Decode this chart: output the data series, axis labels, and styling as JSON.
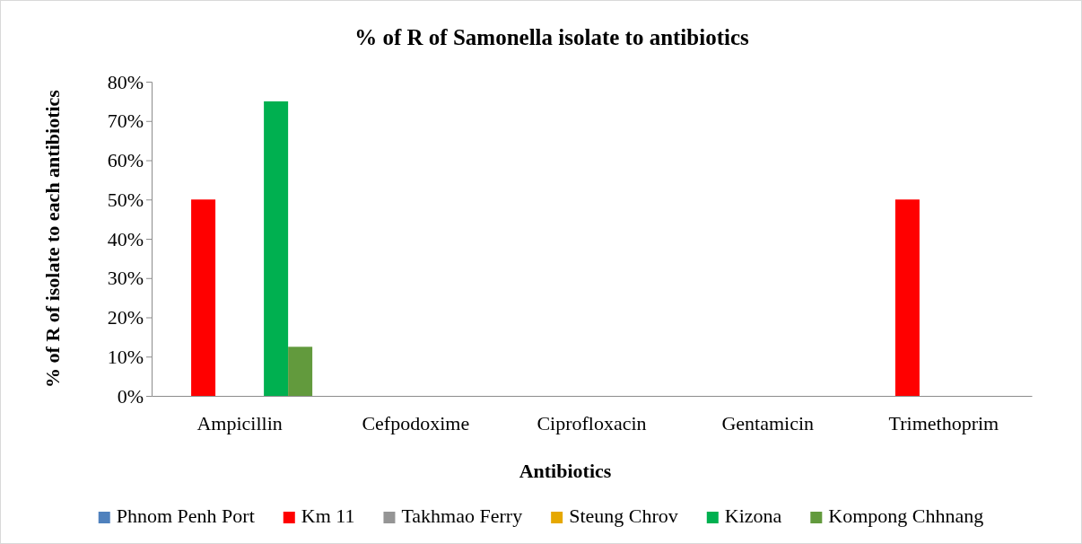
{
  "chart_data": {
    "type": "bar",
    "title": "% of R of Samonella isolate to antibiotics",
    "xlabel": "Antibiotics",
    "ylabel": "% of R of isolate to each antibiotics",
    "categories": [
      "Ampicillin",
      "Cefpodoxime",
      "Ciprofloxacin",
      "Gentamicin",
      "Trimethoprim"
    ],
    "series": [
      {
        "name": "Phnom Penh Port",
        "color": "#4f81bd",
        "values": [
          0,
          0,
          0,
          0,
          0
        ]
      },
      {
        "name": "Km 11",
        "color": "#ff0000",
        "values": [
          50,
          0,
          0,
          0,
          50
        ]
      },
      {
        "name": "Takhmao Ferry",
        "color": "#959595",
        "values": [
          0,
          0,
          0,
          0,
          0
        ]
      },
      {
        "name": "Steung Chrov",
        "color": "#e6a800",
        "values": [
          0,
          0,
          0,
          0,
          0
        ]
      },
      {
        "name": "Kizona",
        "color": "#00b050",
        "values": [
          75,
          0,
          0,
          0,
          0
        ]
      },
      {
        "name": "Kompong Chhnang",
        "color": "#629a3d",
        "values": [
          12.5,
          0,
          0,
          0,
          0
        ]
      }
    ],
    "ylim": [
      0,
      80
    ],
    "yticks": [
      {
        "value": 0,
        "label": "0%"
      },
      {
        "value": 10,
        "label": "10%"
      },
      {
        "value": 20,
        "label": "20%"
      },
      {
        "value": 30,
        "label": "30%"
      },
      {
        "value": 40,
        "label": "40%"
      },
      {
        "value": 50,
        "label": "50%"
      },
      {
        "value": 60,
        "label": "60%"
      },
      {
        "value": 70,
        "label": "70%"
      },
      {
        "value": 80,
        "label": "80%"
      }
    ],
    "grid": false,
    "legend": "bottom"
  }
}
